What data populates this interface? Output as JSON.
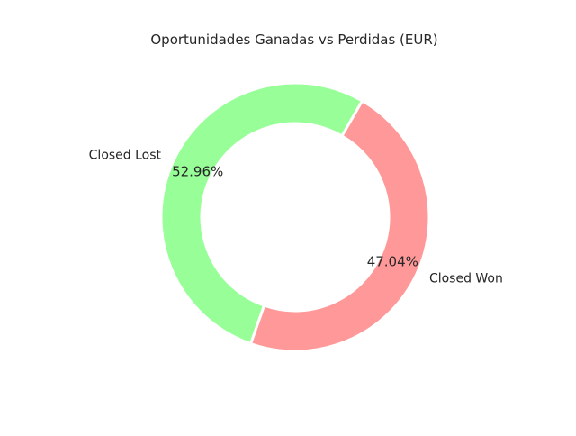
{
  "chart_data": {
    "type": "pie",
    "title": "Oportunidades Ganadas vs Perdidas (EUR)",
    "donut": true,
    "start_angle_deg": 60,
    "counterclockwise": true,
    "slices": [
      {
        "label": "Closed Lost",
        "value": 52.96,
        "pct_label": "52.96%",
        "color": "#98ff98"
      },
      {
        "label": "Closed Won",
        "value": 47.04,
        "pct_label": "47.04%",
        "color": "#ff9999"
      }
    ]
  }
}
